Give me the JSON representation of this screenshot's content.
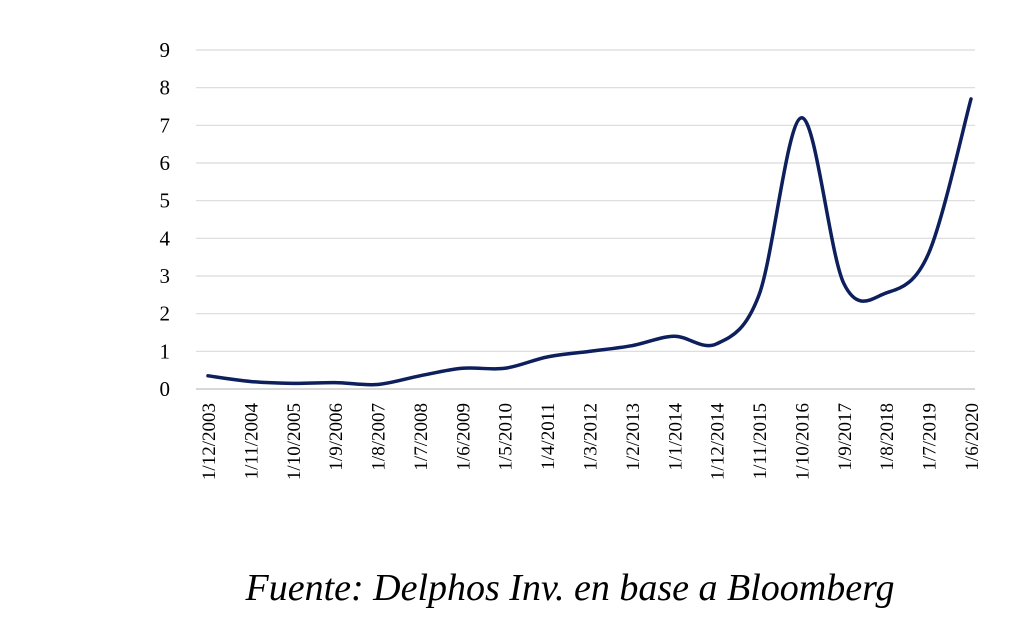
{
  "chart_data": {
    "type": "line",
    "title": "",
    "xlabel": "",
    "ylabel": "",
    "ylim": [
      0,
      9
    ],
    "yticks": [
      0,
      1,
      2,
      3,
      4,
      5,
      6,
      7,
      8,
      9
    ],
    "grid": true,
    "legend": "none",
    "line_color": "#0d1f5c",
    "x_tick_labels": [
      "1/12/2003",
      "1/11/2004",
      "1/10/2005",
      "1/9/2006",
      "1/8/2007",
      "1/7/2008",
      "1/6/2009",
      "1/5/2010",
      "1/4/2011",
      "1/3/2012",
      "1/2/2013",
      "1/1/2014",
      "1/12/2014",
      "1/11/2015",
      "1/10/2016",
      "1/9/2017",
      "1/8/2018",
      "1/7/2019",
      "1/6/2020"
    ],
    "series": [
      {
        "values": [
          0.35,
          0.2,
          0.15,
          0.17,
          0.12,
          0.35,
          0.55,
          0.55,
          0.85,
          1.0,
          1.15,
          1.4,
          1.2,
          2.5,
          7.2,
          2.8,
          2.55,
          3.6,
          7.7
        ]
      }
    ]
  },
  "source_note": "Fuente: Delphos Inv. en base a Bloomberg"
}
